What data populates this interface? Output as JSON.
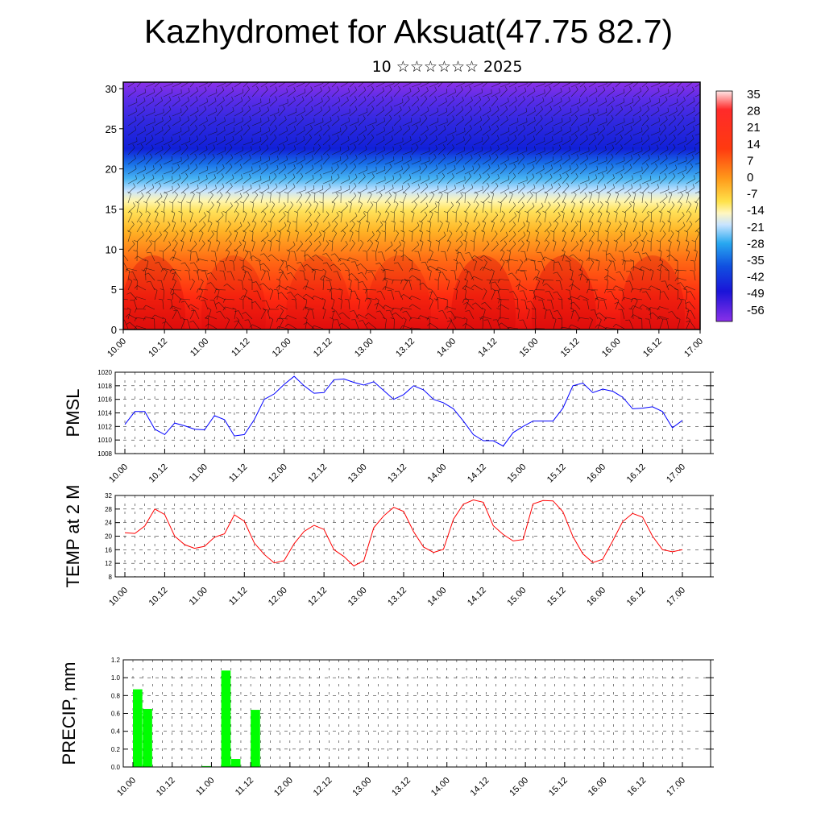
{
  "title": "Kazhydromet for Aksuat(47.75 82.7)",
  "subtitle": "10 ☆☆☆☆☆☆ 2025",
  "time_labels": [
    "10.00",
    "10.12",
    "11.00",
    "11.12",
    "12.00",
    "12.12",
    "13.00",
    "13.12",
    "14.00",
    "14.12",
    "15.00",
    "15.12",
    "16.00",
    "16.12",
    "17.00"
  ],
  "chart_data": [
    {
      "type": "heatmap",
      "title": "",
      "xlabel": "",
      "ylabel": "",
      "y_ticks": [
        0,
        5,
        10,
        15,
        20,
        25,
        30
      ],
      "ylim": [
        0,
        30.8
      ],
      "colorbar": {
        "labels": [
          "35",
          "28",
          "21",
          "14",
          "7",
          "0",
          "-7",
          "-14",
          "-21",
          "-28",
          "-35",
          "-42",
          "-49",
          "-56"
        ],
        "range": [
          -60,
          38
        ]
      },
      "description_values": {
        "surface_warm_temps": [
          14,
          28
        ],
        "upper_cold_temps": [
          -56,
          -49
        ]
      },
      "colors": {
        "hot": "#e81010",
        "warm": "#ffd23c",
        "cold": "#1020e0",
        "coldest": "#8a30e8"
      }
    },
    {
      "type": "line",
      "ylabel": "PMSL",
      "ylim": [
        1008,
        1020
      ],
      "y_ticks": [
        1008,
        1010,
        1012,
        1014,
        1016,
        1018,
        1020
      ],
      "color": "#0000ff",
      "series": [
        {
          "values": [
            1012.3,
            1014.2,
            1014.2,
            1011.6,
            1010.8,
            1012.5,
            1012.1,
            1011.6,
            1011.5,
            1013.6,
            1013.0,
            1010.6,
            1010.8,
            1013.0,
            1016.0,
            1016.8,
            1018.2,
            1019.4,
            1018.0,
            1016.9,
            1017.0,
            1018.9,
            1019.0,
            1018.5,
            1018.1,
            1018.6,
            1017.3,
            1016.0,
            1016.7,
            1018.0,
            1017.4,
            1016.0,
            1015.5,
            1014.6,
            1012.8,
            1010.8,
            1009.9,
            1009.9,
            1009.1,
            1011.1,
            1012.0,
            1012.8,
            1012.8,
            1012.8,
            1014.7,
            1018.0,
            1018.4,
            1017.0,
            1017.5,
            1017.2,
            1016.3,
            1014.6,
            1014.7,
            1014.9,
            1014.2,
            1011.8,
            1012.9
          ]
        }
      ]
    },
    {
      "type": "line",
      "ylabel": "TEMP at 2 M",
      "ylim": [
        8,
        32
      ],
      "y_ticks": [
        8,
        12,
        16,
        20,
        24,
        28,
        32
      ],
      "color": "#ff0000",
      "series": [
        {
          "values": [
            21.0,
            20.8,
            23.0,
            28.0,
            26.4,
            20.0,
            17.5,
            16.4,
            17.0,
            19.7,
            20.7,
            26.3,
            24.4,
            18.0,
            14.6,
            12.1,
            12.8,
            17.8,
            21.4,
            23.2,
            22.0,
            16.0,
            14.0,
            11.2,
            12.8,
            22.5,
            26.0,
            28.5,
            27.3,
            21.3,
            16.8,
            15.2,
            16.1,
            25.0,
            29.4,
            30.7,
            30.0,
            23.1,
            20.5,
            18.6,
            19.0,
            29.5,
            30.5,
            30.4,
            27.2,
            19.9,
            14.8,
            12.2,
            13.2,
            18.6,
            24.3,
            26.7,
            25.6,
            20.0,
            16.0,
            15.4,
            16.0
          ]
        }
      ]
    },
    {
      "type": "bar",
      "ylabel": "PRECIP, mm",
      "ylim": [
        0,
        1.2
      ],
      "y_ticks": [
        "0.0",
        "0.2",
        "0.4",
        "0.6",
        "0.8",
        "1.0",
        "1.2"
      ],
      "color": "#00ff00",
      "series": [
        {
          "values": [
            0.87,
            0.65,
            0,
            0,
            0,
            0,
            0,
            0.01,
            0,
            1.08,
            0.09,
            0,
            0.64,
            0,
            0,
            0,
            0,
            0,
            0,
            0,
            0,
            0,
            0,
            0,
            0,
            0,
            0,
            0,
            0,
            0,
            0,
            0,
            0,
            0,
            0,
            0,
            0,
            0,
            0,
            0,
            0,
            0,
            0,
            0,
            0,
            0,
            0,
            0,
            0,
            0,
            0,
            0,
            0,
            0,
            0,
            0,
            0
          ]
        }
      ]
    }
  ]
}
